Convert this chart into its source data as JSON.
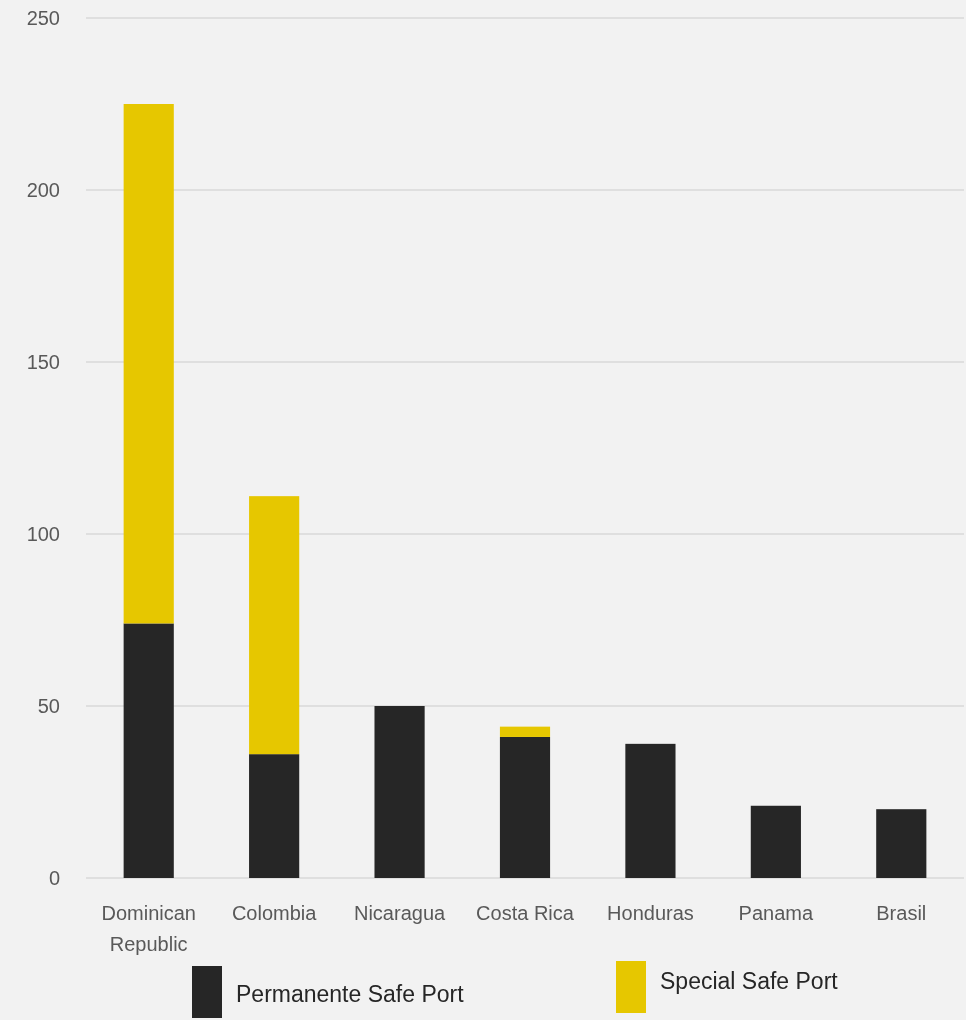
{
  "chart_data": {
    "type": "bar",
    "stacked": true,
    "categories": [
      "Dominican Republic",
      "Colombia",
      "Nicaragua",
      "Costa Rica",
      "Honduras",
      "Panama",
      "Brasil"
    ],
    "series": [
      {
        "name": "Permanente Safe Port",
        "color": "#262626",
        "values": [
          74,
          36,
          50,
          41,
          39,
          21,
          20
        ]
      },
      {
        "name": "Special Safe Port",
        "color": "#e6c700",
        "values": [
          151,
          75,
          null,
          3,
          null,
          null,
          null
        ]
      }
    ],
    "ylim": [
      0,
      250
    ],
    "yticks": [
      0,
      50,
      100,
      150,
      200,
      250
    ],
    "grid": "y",
    "legend": "bottom"
  }
}
